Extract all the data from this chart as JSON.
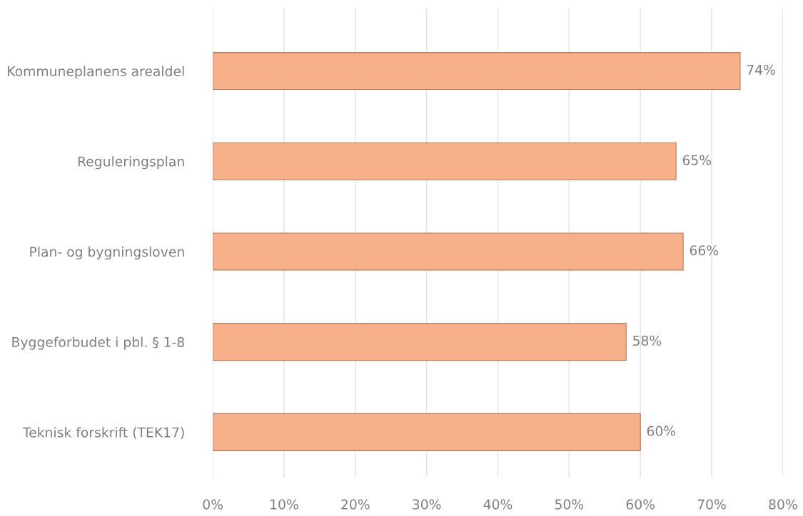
{
  "chart_data": {
    "type": "bar",
    "orientation": "horizontal",
    "categories": [
      "Kommuneplanens arealdel",
      "Reguleringsplan",
      "Plan- og bygningsloven",
      "Byggeforbudet i pbl. § 1-8",
      "Teknisk forskrift (TEK17)"
    ],
    "values": [
      74,
      65,
      66,
      58,
      60
    ],
    "color": "#f7b08a",
    "value_labels": [
      "74%",
      "65%",
      "66%",
      "58%",
      "60%"
    ],
    "xlim": [
      0,
      80
    ],
    "xticks": [
      {
        "value": 0,
        "label": "0%"
      },
      {
        "value": 10,
        "label": "10%"
      },
      {
        "value": 20,
        "label": "20%"
      },
      {
        "value": 30,
        "label": "30%"
      },
      {
        "value": 40,
        "label": "40%"
      },
      {
        "value": 50,
        "label": "50%"
      },
      {
        "value": 60,
        "label": "60%"
      },
      {
        "value": 70,
        "label": "70%"
      },
      {
        "value": 80,
        "label": "80%"
      }
    ],
    "grid": "x"
  }
}
